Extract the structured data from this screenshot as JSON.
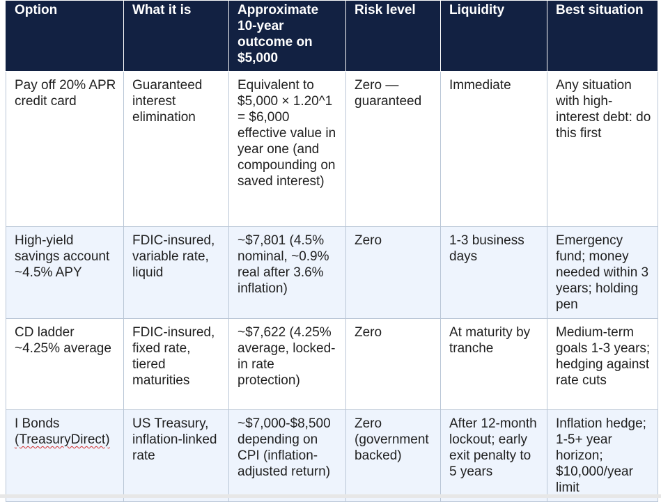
{
  "table": {
    "headers": [
      "Option",
      "What it is",
      "Approximate 10-year outcome on $5,000",
      "Risk level",
      "Liquidity",
      "Best situation"
    ],
    "rows": [
      {
        "option": "Pay off 20% APR credit card",
        "what": "Guaranteed interest elimination",
        "outcome": "Equivalent to $5,000 × 1.20^1 = $6,000 effective value in year one (and compounding on saved interest)",
        "risk": "Zero — guaranteed",
        "liquidity": "Immediate",
        "best": "Any situation with high-interest debt: do this first"
      },
      {
        "option": "High-yield savings account ~4.5% APY",
        "what": "FDIC-insured, variable rate, liquid",
        "outcome": "~$7,801 (4.5% nominal, ~0.9% real after 3.6% inflation)",
        "risk": "Zero",
        "liquidity": "1-3 business days",
        "best": "Emergency fund; money needed within 3 years; holding pen"
      },
      {
        "option": "CD ladder ~4.25% average",
        "what": "FDIC-insured, fixed rate, tiered maturities",
        "outcome": "~$7,622 (4.25% average, locked-in rate protection)",
        "risk": "Zero",
        "liquidity": "At maturity by tranche",
        "best": "Medium-term goals 1-3 years; hedging against rate cuts"
      },
      {
        "option_main": "I Bonds",
        "option_flagged": "(TreasuryDirect)",
        "what": "US Treasury, inflation-linked rate",
        "outcome": "~$7,000-$8,500 depending on CPI (inflation-adjusted return)",
        "risk": "Zero (government backed)",
        "liquidity": "After 12-month lockout; early exit penalty to 5 years",
        "best": "Inflation hedge; 1-5+ year horizon; $10,000/year limit"
      }
    ]
  },
  "colors": {
    "header_background": "#122142",
    "header_text": "#ffffff",
    "band_background": "#eef4fd",
    "spellcheck_underline": "#d12c2c"
  }
}
